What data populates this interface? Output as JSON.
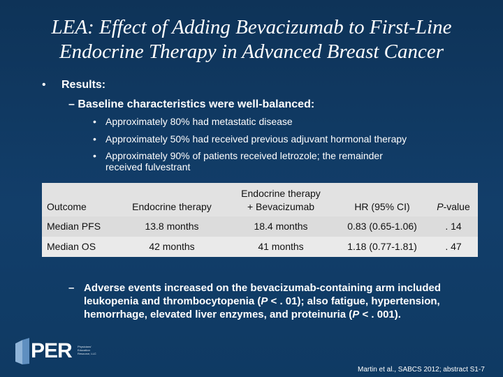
{
  "title": {
    "line1": "LEA: Effect of Adding Bevacizumab to First-Line",
    "line2": "Endocrine Therapy in Advanced Breast Cancer"
  },
  "bullet": {
    "marker": "•",
    "text": "Results:"
  },
  "sub_heading": "– Baseline characteristics were well-balanced:",
  "sub_bullets": [
    "Approximately 80% had metastatic disease",
    "Approximately 50% had received previous adjuvant hormonal therapy",
    "Approximately 90% of patients received letrozole; the remainder",
    "received fulvestrant"
  ],
  "table": {
    "headers": [
      "Outcome",
      "Endocrine therapy",
      "Endocrine therapy",
      "+ Bevacizumab",
      "HR (95% CI)",
      "P",
      "-value"
    ],
    "rows": [
      [
        "Median PFS",
        "13.8 months",
        "18.4 months",
        "0.83 (0.65-1.06)",
        ". 14"
      ],
      [
        "Median OS",
        "42 months",
        "41 months",
        "1.18 (0.77-1.81)",
        ". 47"
      ]
    ]
  },
  "adverse": {
    "dash": "–",
    "part1": "Adverse events increased on the bevacizumab-containing arm included leukopenia and thrombocytopenia (",
    "p1": "P",
    "part2": " < . 01); also fatigue, hypertension, hemorrhage, elevated liver enzymes, and proteinuria (",
    "p2": "P",
    "part3": " < . 001)."
  },
  "logo": {
    "text": "PER",
    "small": "Physicians' Education Resource, LLC"
  },
  "citation": "Martin et al., SABCS 2012; abstract S1-7"
}
